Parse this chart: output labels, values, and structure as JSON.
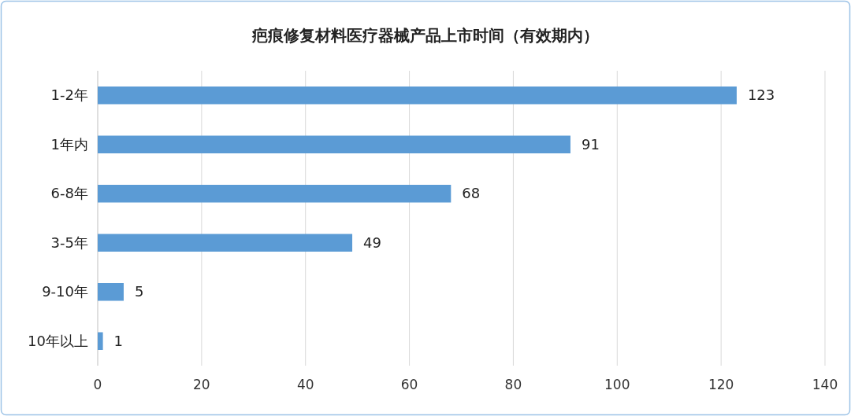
{
  "chart_data": {
    "type": "bar",
    "orientation": "horizontal",
    "title": "疤痕修复材料医疗器械产品上市时间（有效期内）",
    "categories": [
      "1-2年",
      "1年内",
      "6-8年",
      "3-5年",
      "9-10年",
      "10年以上"
    ],
    "values": [
      123,
      91,
      68,
      49,
      5,
      1
    ],
    "color": "#5b9bd5",
    "xlim": [
      0,
      140
    ],
    "xticks": [
      0,
      20,
      40,
      60,
      80,
      100,
      120,
      140
    ],
    "grid": "x",
    "data_labels": true
  }
}
